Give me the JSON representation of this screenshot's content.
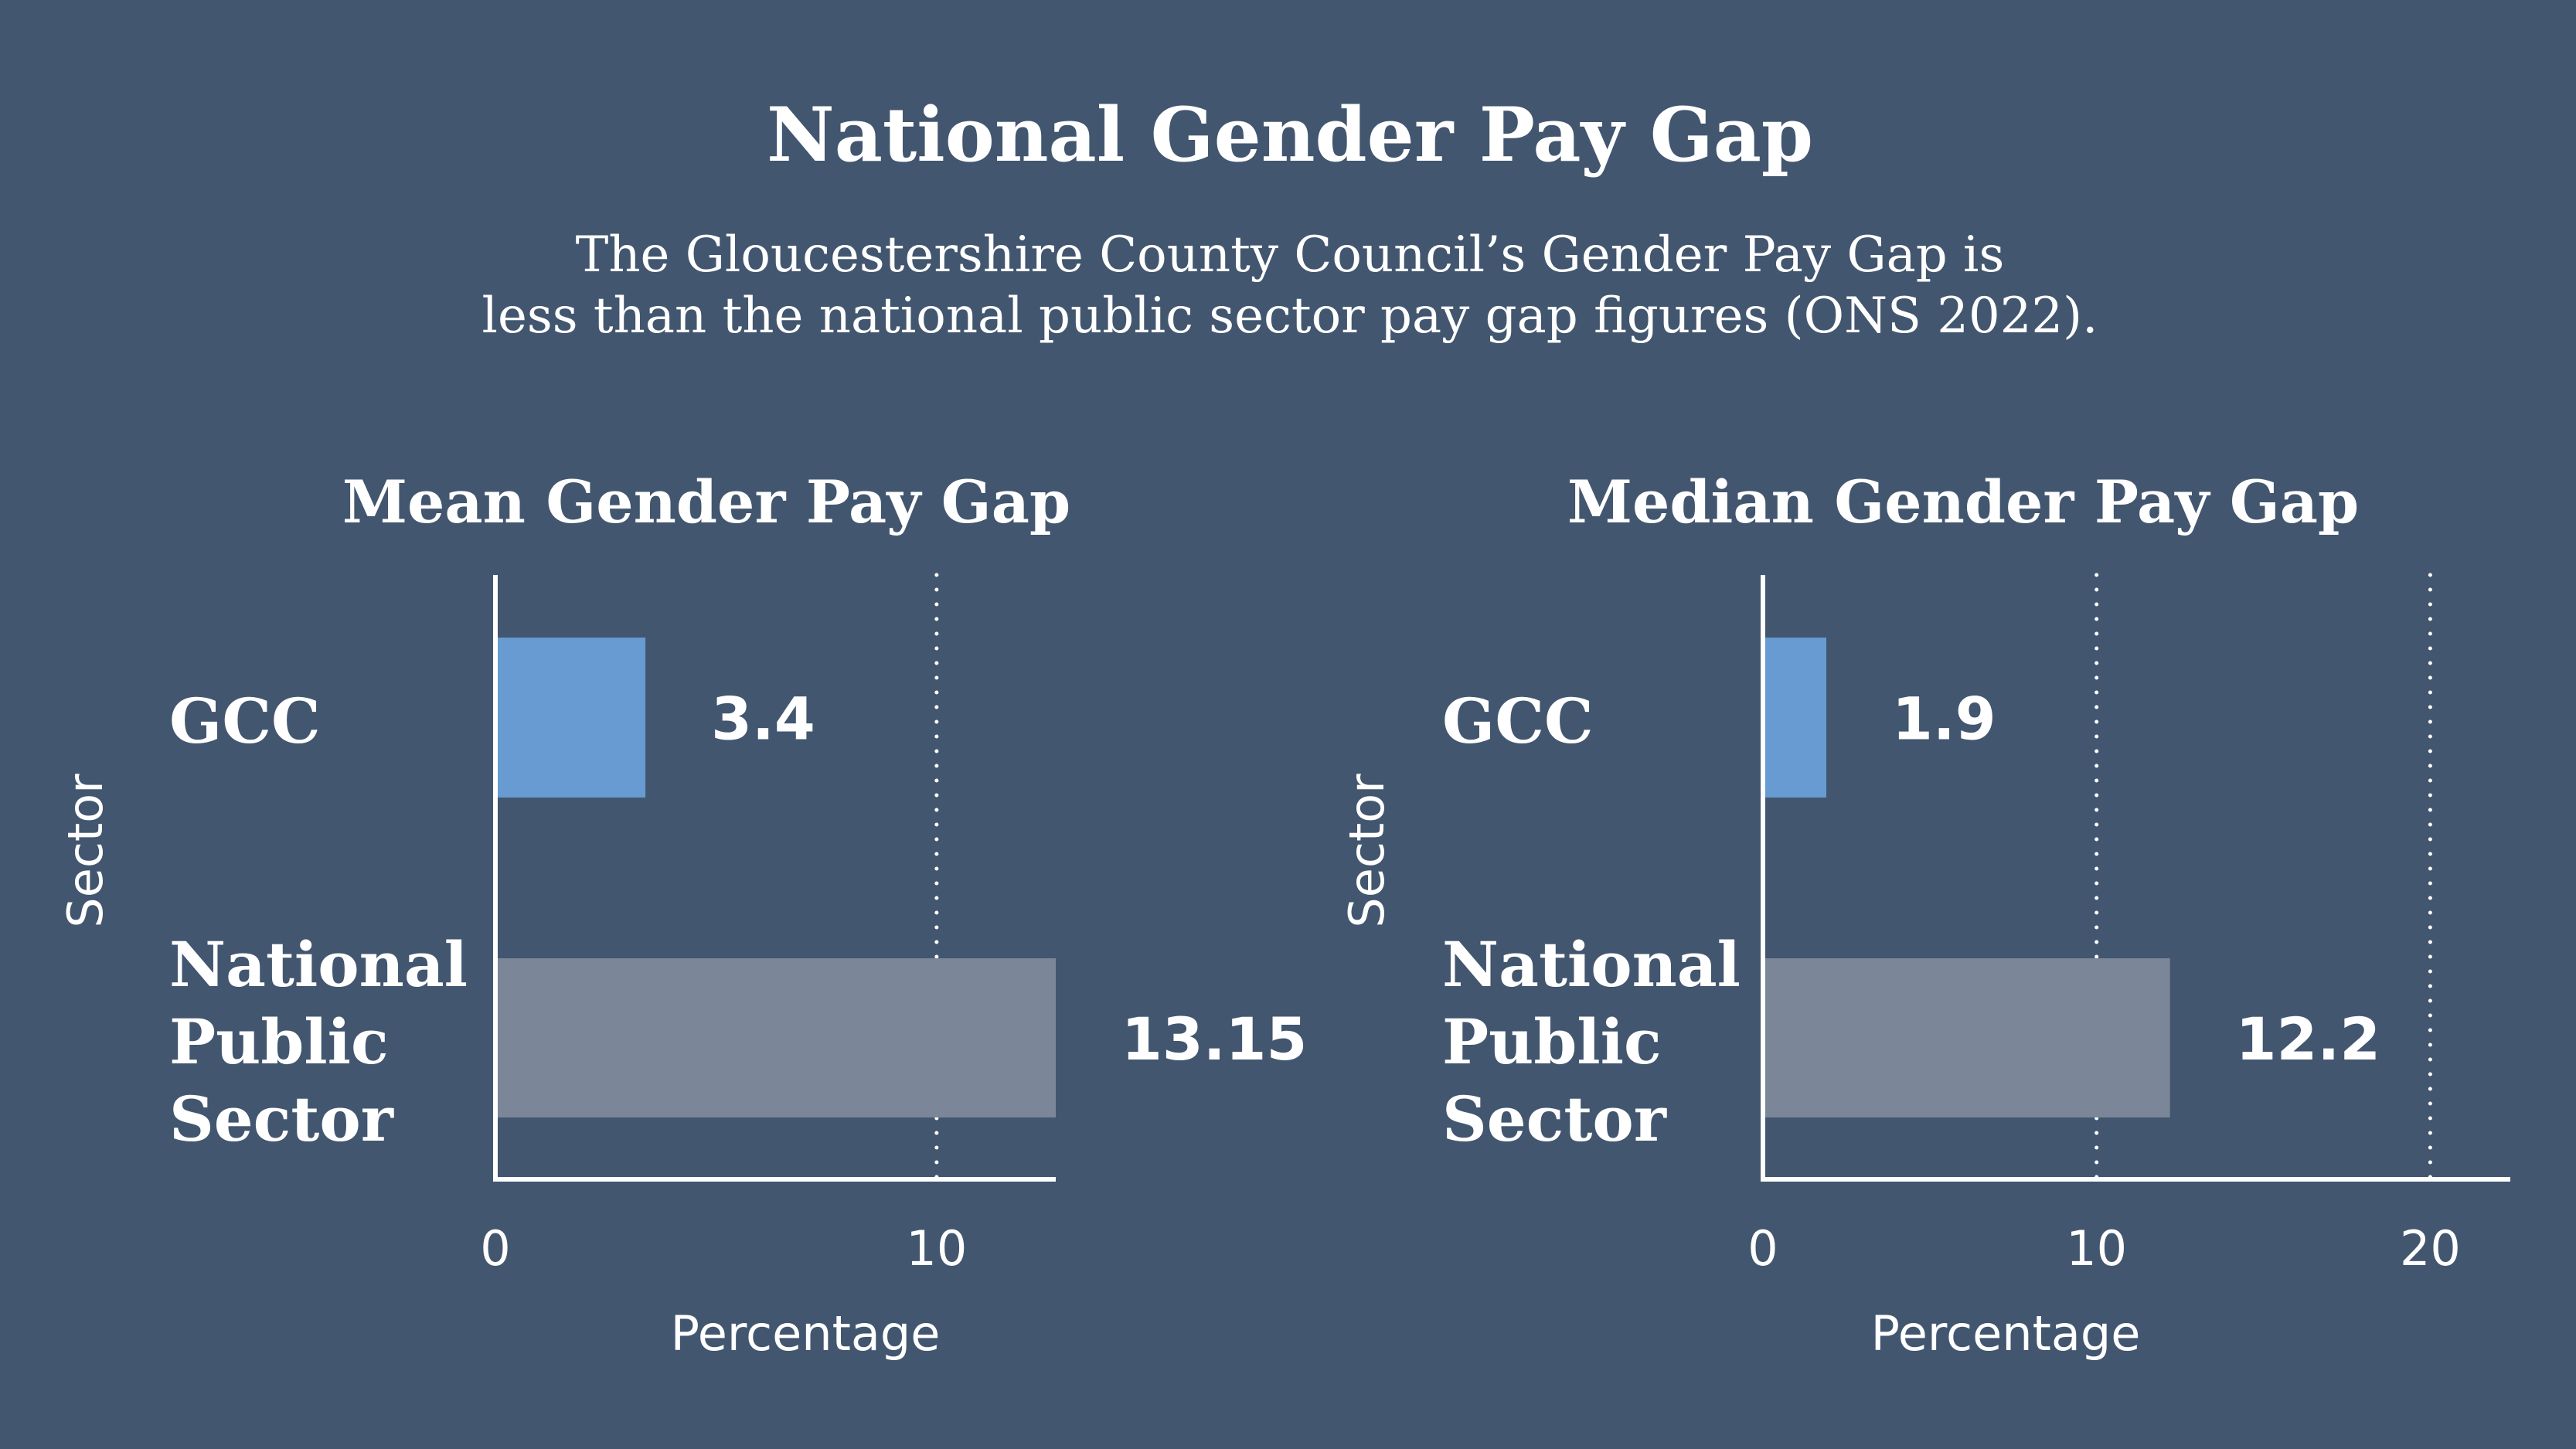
{
  "header": {
    "title": "National Gender Pay Gap",
    "subtitle_line1": "The Gloucestershire County Council’s Gender Pay Gap is",
    "subtitle_line2": "less than the national public sector pay gap figures (ONS 2022)."
  },
  "colors": {
    "background": "#42566f",
    "gcc": "#679bd1",
    "national": "#7b8799",
    "text": "#ffffff"
  },
  "chart_data": [
    {
      "type": "bar",
      "orientation": "horizontal",
      "title": "Mean Gender Pay Gap",
      "xlabel": "Percentage",
      "ylabel": "Sector",
      "categories": [
        "GCC",
        "National Public Sector"
      ],
      "values": [
        3.4,
        13.15
      ],
      "value_labels": [
        "3.4",
        "13.15"
      ],
      "xticks": [
        0,
        10
      ],
      "xlim": [
        0,
        12.7
      ],
      "grid": "dotted vertical"
    },
    {
      "type": "bar",
      "orientation": "horizontal",
      "title": "Median Gender Pay Gap",
      "xlabel": "Percentage",
      "ylabel": "Sector",
      "categories": [
        "GCC",
        "National Public Sector"
      ],
      "values": [
        1.9,
        12.2
      ],
      "value_labels": [
        "1.9",
        "12.2"
      ],
      "xticks": [
        0,
        10,
        20
      ],
      "xlim": [
        0,
        22.4
      ],
      "grid": "dotted vertical"
    }
  ]
}
